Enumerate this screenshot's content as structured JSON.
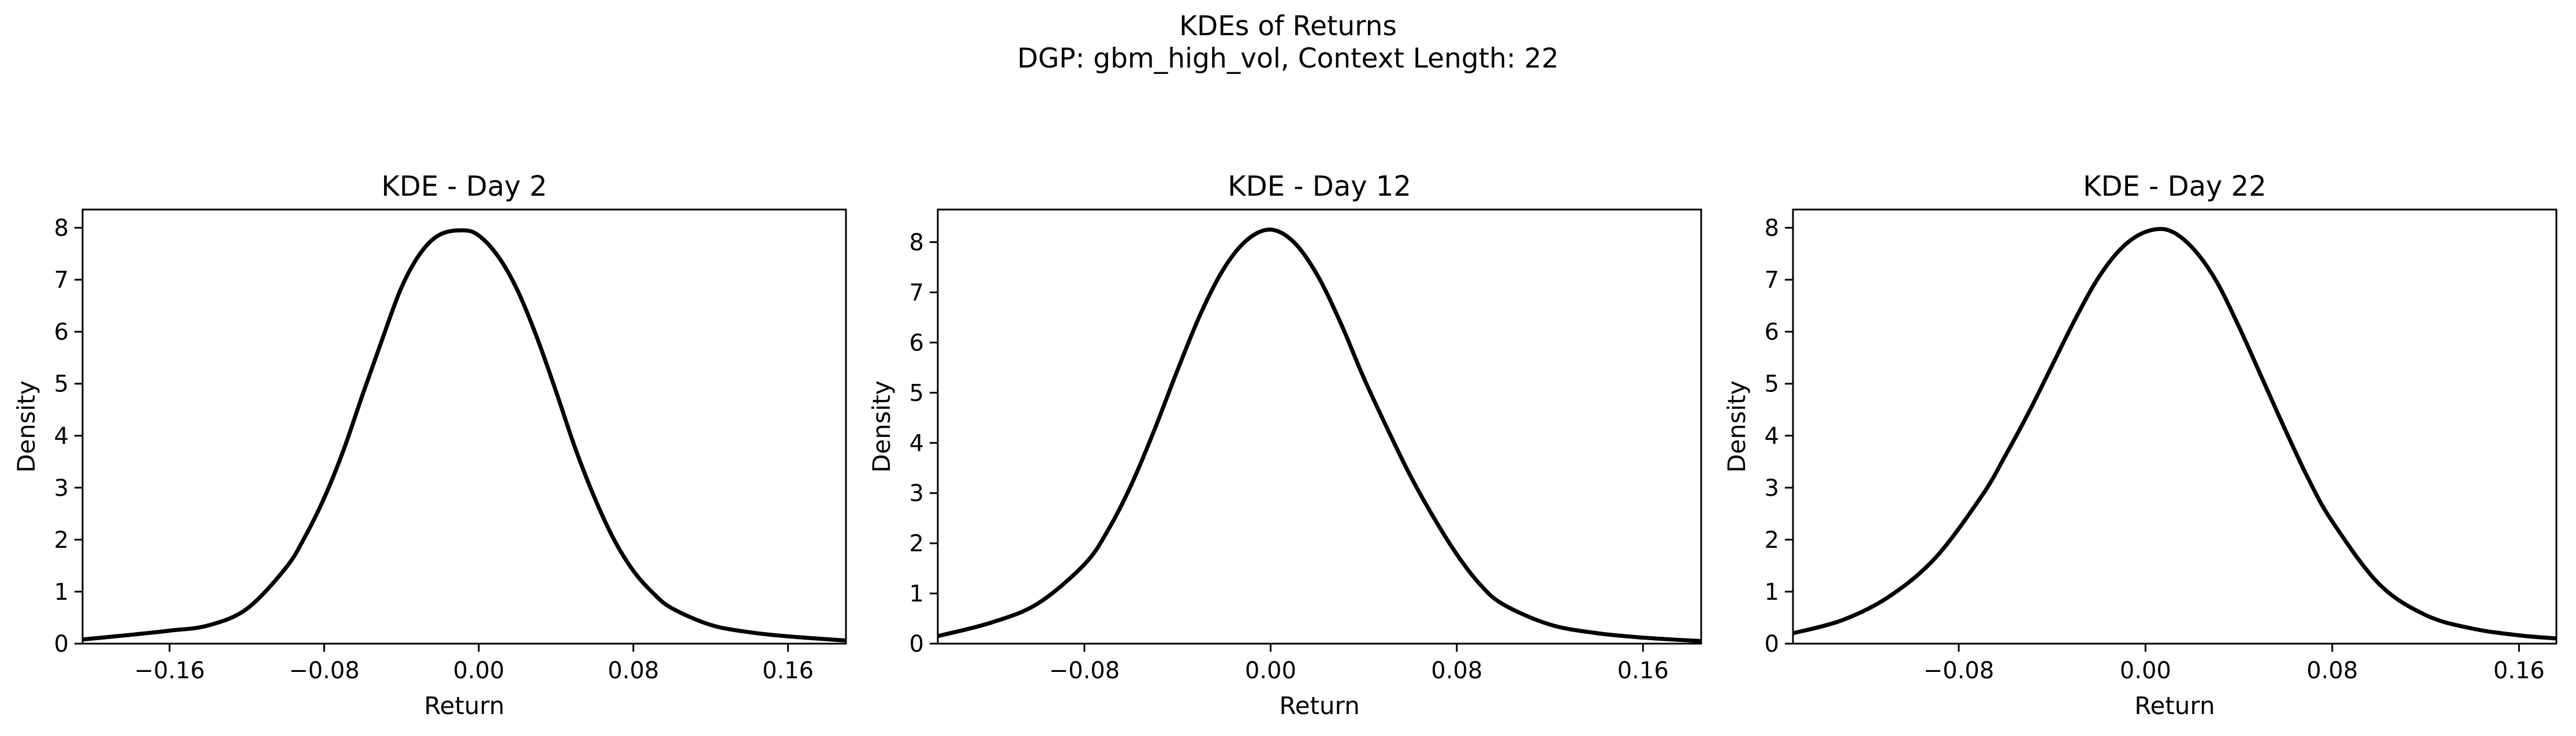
{
  "figure": {
    "title_line1": "KDEs of Returns",
    "title_line2": "DGP: gbm_high_vol, Context Length: 22",
    "background": "#ffffff",
    "line_color": "#000000"
  },
  "chart_data": [
    {
      "type": "line",
      "title": "KDE - Day 2",
      "xlabel": "Return",
      "ylabel": "Density",
      "xlim": [
        -0.205,
        0.19
      ],
      "ylim": [
        0,
        8.35
      ],
      "xticks": [
        -0.16,
        -0.08,
        0.0,
        0.08,
        0.16
      ],
      "xtick_labels": [
        "−0.16",
        "−0.08",
        "0.00",
        "0.08",
        "0.16"
      ],
      "yticks": [
        0,
        1,
        2,
        3,
        4,
        5,
        6,
        7,
        8
      ],
      "ytick_labels": [
        "0",
        "1",
        "2",
        "3",
        "4",
        "5",
        "6",
        "7",
        "8"
      ],
      "grid": false,
      "series": [
        {
          "x": [
            -0.205,
            -0.18,
            -0.16,
            -0.14,
            -0.12,
            -0.1,
            -0.09,
            -0.08,
            -0.07,
            -0.06,
            -0.05,
            -0.04,
            -0.03,
            -0.02,
            -0.008,
            0.0,
            0.01,
            0.02,
            0.03,
            0.04,
            0.05,
            0.06,
            0.07,
            0.08,
            0.09,
            0.1,
            0.12,
            0.14,
            0.16,
            0.19
          ],
          "y": [
            0.08,
            0.17,
            0.25,
            0.35,
            0.67,
            1.45,
            2.05,
            2.8,
            3.72,
            4.8,
            5.85,
            6.85,
            7.52,
            7.87,
            7.95,
            7.85,
            7.45,
            6.8,
            5.9,
            4.85,
            3.75,
            2.8,
            2.0,
            1.4,
            0.98,
            0.68,
            0.36,
            0.22,
            0.14,
            0.06
          ]
        }
      ]
    },
    {
      "type": "line",
      "title": "KDE - Day 12",
      "xlabel": "Return",
      "ylabel": "Density",
      "xlim": [
        -0.143,
        0.185
      ],
      "ylim": [
        0,
        8.65
      ],
      "xticks": [
        -0.08,
        0.0,
        0.08,
        0.16
      ],
      "xtick_labels": [
        "−0.08",
        "0.00",
        "0.08",
        "0.16"
      ],
      "yticks": [
        0,
        1,
        2,
        3,
        4,
        5,
        6,
        7,
        8
      ],
      "ytick_labels": [
        "0",
        "1",
        "2",
        "3",
        "4",
        "5",
        "6",
        "7",
        "8"
      ],
      "grid": false,
      "series": [
        {
          "x": [
            -0.143,
            -0.12,
            -0.1,
            -0.08,
            -0.07,
            -0.06,
            -0.05,
            -0.04,
            -0.03,
            -0.02,
            -0.01,
            0.0,
            0.01,
            0.02,
            0.03,
            0.04,
            0.05,
            0.06,
            0.07,
            0.08,
            0.09,
            0.1,
            0.12,
            0.14,
            0.16,
            0.185
          ],
          "y": [
            0.15,
            0.42,
            0.8,
            1.58,
            2.25,
            3.15,
            4.25,
            5.45,
            6.58,
            7.48,
            8.05,
            8.25,
            8.0,
            7.35,
            6.4,
            5.3,
            4.3,
            3.35,
            2.52,
            1.78,
            1.18,
            0.78,
            0.38,
            0.21,
            0.12,
            0.05
          ]
        }
      ]
    },
    {
      "type": "line",
      "title": "KDE - Day 22",
      "xlabel": "Return",
      "ylabel": "Density",
      "xlim": [
        -0.151,
        0.176
      ],
      "ylim": [
        0,
        8.35
      ],
      "xticks": [
        -0.08,
        0.0,
        0.08,
        0.16
      ],
      "xtick_labels": [
        "−0.08",
        "0.00",
        "0.08",
        "0.16"
      ],
      "yticks": [
        0,
        1,
        2,
        3,
        4,
        5,
        6,
        7,
        8
      ],
      "ytick_labels": [
        "0",
        "1",
        "2",
        "3",
        "4",
        "5",
        "6",
        "7",
        "8"
      ],
      "grid": false,
      "series": [
        {
          "x": [
            -0.151,
            -0.13,
            -0.11,
            -0.09,
            -0.07,
            -0.06,
            -0.05,
            -0.04,
            -0.03,
            -0.02,
            -0.01,
            0.0,
            0.01,
            0.02,
            0.03,
            0.04,
            0.05,
            0.06,
            0.07,
            0.08,
            0.1,
            0.12,
            0.14,
            0.16,
            0.176
          ],
          "y": [
            0.2,
            0.45,
            0.9,
            1.65,
            2.85,
            3.62,
            4.45,
            5.35,
            6.25,
            7.05,
            7.62,
            7.92,
            7.95,
            7.62,
            7.0,
            6.1,
            5.1,
            4.1,
            3.15,
            2.35,
            1.15,
            0.55,
            0.29,
            0.16,
            0.1
          ]
        }
      ]
    }
  ]
}
